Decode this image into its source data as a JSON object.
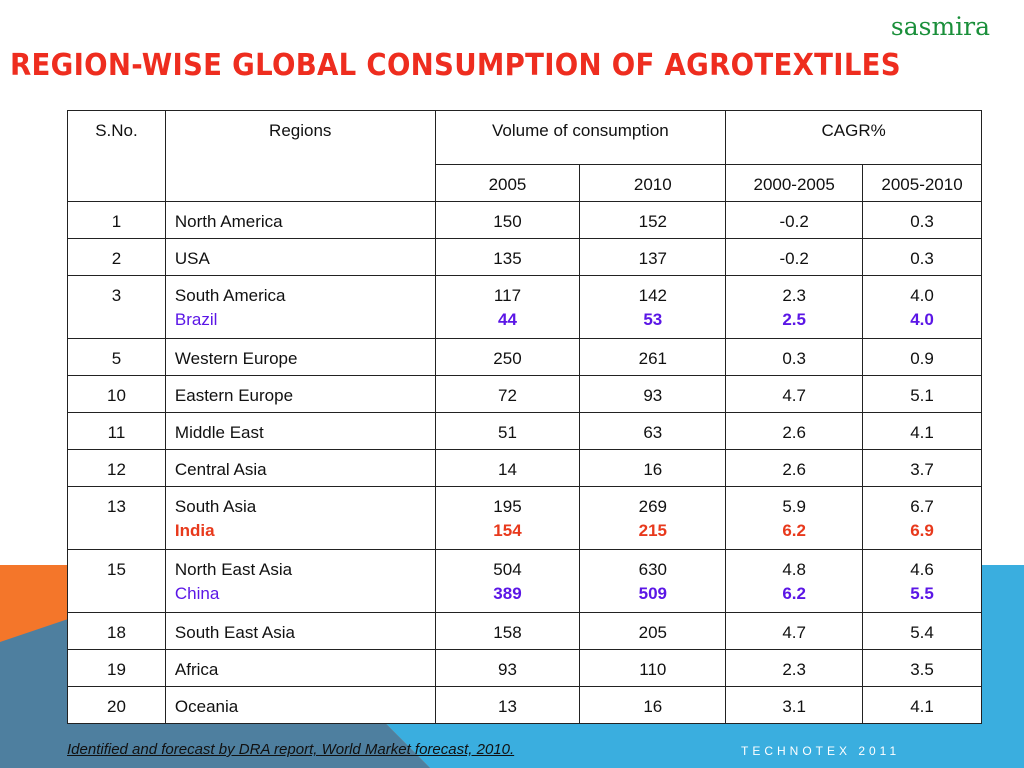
{
  "brand": "sasmira",
  "title": "REGION-WISE GLOBAL CONSUMPTION OF AGROTEXTILES",
  "table": {
    "headers": {
      "sno": "S.No.",
      "regions": "Regions",
      "volume": "Volume of consumption",
      "cagr": "CAGR%",
      "vol_2005": "2005",
      "vol_2010": "2010",
      "cagr_2000_2005": "2000-2005",
      "cagr_2005_2010": "2005-2010"
    },
    "rows": [
      {
        "sno": "1",
        "region": "North America",
        "v2005": "150",
        "v2010": "152",
        "c1": "-0.2",
        "c2": "0.3"
      },
      {
        "sno": "2",
        "region": "USA",
        "v2005": "135",
        "v2010": "137",
        "c1": "-0.2",
        "c2": "0.3"
      },
      {
        "sno": "3",
        "region": "South America",
        "v2005": "117",
        "v2010": "142",
        "c1": "2.3",
        "c2": "4.0",
        "sub": {
          "region": "Brazil",
          "v2005": "44",
          "v2010": "53",
          "c1": "2.5",
          "c2": "4.0",
          "color": "#5b16e6"
        }
      },
      {
        "sno": "5",
        "region": "Western Europe",
        "v2005": "250",
        "v2010": "261",
        "c1": "0.3",
        "c2": "0.9"
      },
      {
        "sno": "10",
        "region": "Eastern Europe",
        "v2005": "72",
        "v2010": "93",
        "c1": "4.7",
        "c2": "5.1"
      },
      {
        "sno": "11",
        "region": "Middle East",
        "v2005": "51",
        "v2010": "63",
        "c1": "2.6",
        "c2": "4.1"
      },
      {
        "sno": "12",
        "region": "Central Asia",
        "v2005": "14",
        "v2010": "16",
        "c1": "2.6",
        "c2": "3.7"
      },
      {
        "sno": "13",
        "region": "South Asia",
        "v2005": "195",
        "v2010": "269",
        "c1": "5.9",
        "c2": "6.7",
        "sub": {
          "region": "India",
          "v2005": "154",
          "v2010": "215",
          "c1": "6.2",
          "c2": "6.9",
          "color": "#e8391c"
        }
      },
      {
        "sno": "15",
        "region": "North East Asia",
        "v2005": "504",
        "v2010": "630",
        "c1": "4.8",
        "c2": "4.6",
        "sub": {
          "region": "China",
          "v2005": "389",
          "v2010": "509",
          "c1": "6.2",
          "c2": "5.5",
          "color": "#5b16e6"
        }
      },
      {
        "sno": "18",
        "region": "South East Asia",
        "v2005": "158",
        "v2010": "205",
        "c1": "4.7",
        "c2": "5.4"
      },
      {
        "sno": "19",
        "region": "Africa",
        "v2005": "93",
        "v2010": "110",
        "c1": "2.3",
        "c2": "3.5"
      },
      {
        "sno": "20",
        "region": "Oceania",
        "v2005": "13",
        "v2010": "16",
        "c1": "3.1",
        "c2": "4.1"
      }
    ]
  },
  "footnote": "Identified and forecast by DRA report, World Market forecast, 2010.",
  "event": "TECHNOTEX 2011",
  "colors": {
    "title": "#ee2d1f",
    "brand": "#1a8f3a",
    "orange": "#f4762a",
    "blue": "#3aaedf",
    "purple": "#5b16e6",
    "red": "#e8391c"
  }
}
